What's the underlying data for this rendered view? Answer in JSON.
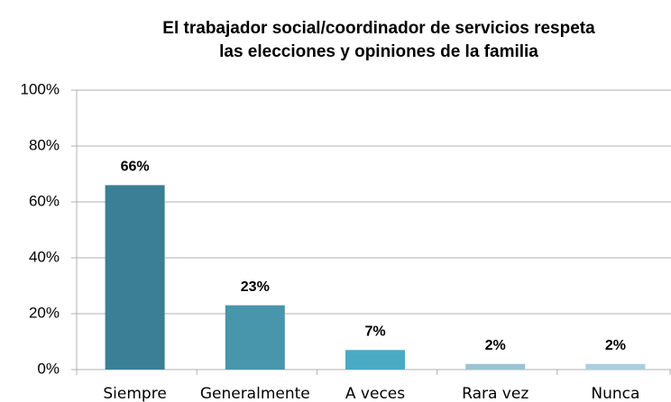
{
  "chart_data": {
    "type": "bar",
    "title": [
      "El trabajador social/coordinador de servicios respeta",
      "las elecciones y opiniones de la familia"
    ],
    "categories": [
      "Siempre",
      "Generalmente",
      "A veces",
      "Rara vez",
      "Nunca"
    ],
    "values": [
      66,
      23,
      7,
      2,
      2
    ],
    "value_labels": [
      "66%",
      "23%",
      "7%",
      "2%",
      "2%"
    ],
    "colors": [
      "#3a7f96",
      "#4796ab",
      "#4aaac4",
      "#9ac3d3",
      "#a9cfdd"
    ],
    "ylim": [
      0,
      100
    ],
    "yticks": [
      {
        "value": 0,
        "label": "0%"
      },
      {
        "value": 20,
        "label": "20%"
      },
      {
        "value": 40,
        "label": "40%"
      },
      {
        "value": 60,
        "label": "60%"
      },
      {
        "value": 80,
        "label": "80%"
      },
      {
        "value": 100,
        "label": "100%"
      }
    ],
    "grid": true
  }
}
